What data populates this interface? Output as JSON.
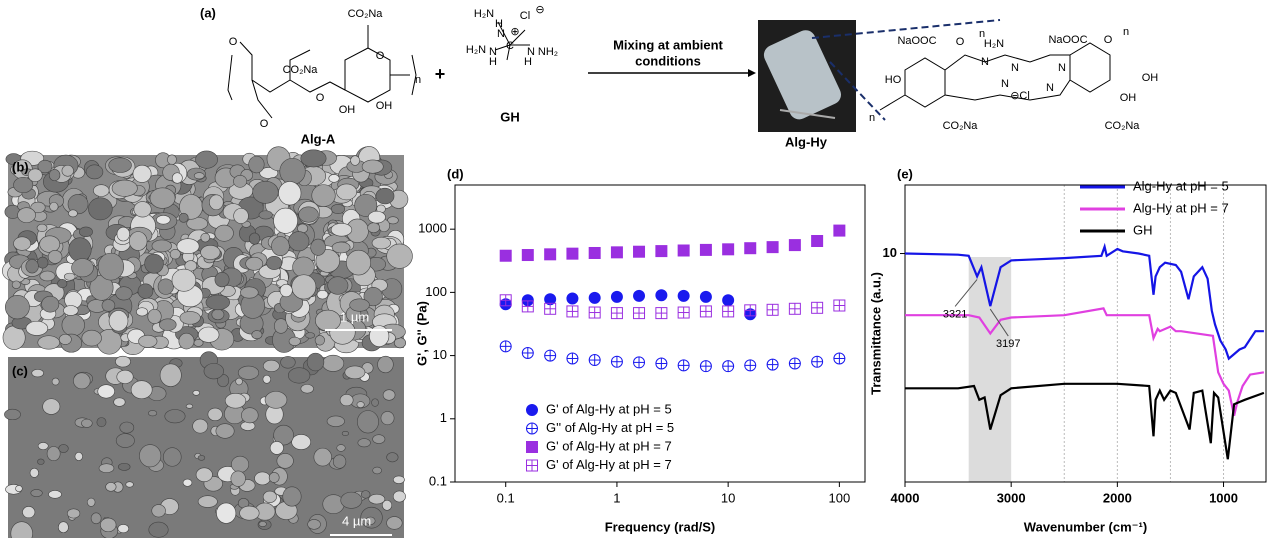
{
  "scheme": {
    "label": "(a)",
    "reactant_1": {
      "name": "Alg-A",
      "atoms": [
        "O",
        "CO₂Na",
        "CO₂Na",
        "O",
        "O",
        "O",
        "OH",
        "OH",
        "n"
      ]
    },
    "plus": "+",
    "reactant_2": {
      "name": "GH",
      "atoms": [
        "H₂N",
        "H",
        "N",
        "Cl",
        "⊖",
        "⊕",
        "H₂N",
        "N",
        "C",
        "N",
        "NH₂",
        "H",
        "H"
      ]
    },
    "arrow_text": [
      "Mixing at ambient",
      "conditions"
    ],
    "product": {
      "name": "Alg-Hy",
      "atoms": [
        "NaOOC",
        "O",
        "n",
        "H₂N",
        "NaOOC",
        "O",
        "n",
        "HO",
        "OH",
        "N",
        "N",
        "N",
        "N",
        "⊖Cl",
        "OH",
        "n",
        "CO₂Na",
        "CO₂Na",
        "N"
      ]
    }
  },
  "images": [
    {
      "label": "(b)",
      "scale_bar": "1 µm"
    },
    {
      "label": "(c)",
      "scale_bar": "4 µm"
    }
  ],
  "chart_data": [
    {
      "type": "scatter",
      "panel_label": "(d)",
      "xlabel": "Frequency (rad/S)",
      "ylabel": "G', G'' (Pa)",
      "xscale": "log",
      "yscale": "log",
      "xlim": [
        0.035,
        170
      ],
      "ylim": [
        0.1,
        5000
      ],
      "xticks": [
        0.1,
        1,
        10,
        100
      ],
      "yticks": [
        0.1,
        1,
        10,
        100,
        1000
      ],
      "x": [
        0.1,
        0.158,
        0.251,
        0.398,
        0.631,
        1,
        1.58,
        2.51,
        3.98,
        6.31,
        10,
        15.8,
        25.1,
        39.8,
        63.1,
        100
      ],
      "series": [
        {
          "name": "G' of Alg-Hy at pH = 5",
          "color": "#1a1aee",
          "marker": "circle",
          "filled": true,
          "values": [
            65,
            75,
            78,
            80,
            82,
            85,
            88,
            90,
            88,
            85,
            75,
            45,
            null,
            null,
            null,
            null
          ]
        },
        {
          "name": "G'' of Alg-Hy at pH = 5",
          "color": "#1a1aee",
          "marker": "circle",
          "filled": false,
          "values": [
            14,
            11,
            10,
            9,
            8.5,
            8,
            7.8,
            7.5,
            7,
            6.8,
            6.8,
            7,
            7.2,
            7.5,
            8,
            9
          ]
        },
        {
          "name": "G' of Alg-Hy at pH = 7",
          "color": "#9a2fe0",
          "marker": "square",
          "filled": true,
          "values": [
            380,
            390,
            400,
            410,
            420,
            430,
            440,
            450,
            460,
            470,
            480,
            500,
            520,
            560,
            650,
            950
          ]
        },
        {
          "name": "G' of Alg-Hy at pH = 7",
          "color": "#9a2fe0",
          "marker": "square",
          "filled": false,
          "values": [
            75,
            60,
            55,
            50,
            48,
            47,
            47,
            47,
            48,
            50,
            50,
            52,
            53,
            55,
            57,
            62
          ]
        }
      ],
      "legend": "lower-left"
    },
    {
      "type": "line",
      "panel_label": "(e)",
      "xlabel": "Wavenumber (cm⁻¹)",
      "ylabel": "Transmittance (a.u.)",
      "xlim": [
        4000,
        600
      ],
      "ylim": [
        0,
        13
      ],
      "xticks": [
        4000,
        3000,
        2000,
        1000
      ],
      "yticks": [
        10
      ],
      "vlines": [
        2500,
        2000,
        1500,
        1000
      ],
      "shade": [
        3400,
        3000
      ],
      "annotations": [
        {
          "text": "3321",
          "x": 3321,
          "y": 9.0
        },
        {
          "text": "3197",
          "x": 3197,
          "y": 7.7
        }
      ],
      "legend": "upper-right",
      "series": [
        {
          "name": "Alg-Hy at pH = 5",
          "color": "#1515e6",
          "x": [
            4000,
            3500,
            3400,
            3321,
            3280,
            3197,
            3100,
            3000,
            2500,
            2150,
            2120,
            2100,
            2000,
            1950,
            1800,
            1700,
            1660,
            1640,
            1600,
            1550,
            1450,
            1400,
            1330,
            1280,
            1200,
            1150,
            1110,
            1080,
            1030,
            980,
            950,
            900,
            850,
            800,
            700,
            620
          ],
          "values": [
            10,
            9.95,
            9.9,
            9.0,
            9.4,
            7.7,
            9.4,
            9.7,
            9.8,
            9.9,
            10.3,
            9.9,
            10.2,
            10.1,
            10,
            9.9,
            8.2,
            9.0,
            9.4,
            9.6,
            9.5,
            9.2,
            8.0,
            9.0,
            9.4,
            8.9,
            7.5,
            6.9,
            6.2,
            5.8,
            5.4,
            5.6,
            5.8,
            5.9,
            6.6,
            6.6
          ]
        },
        {
          "name": "Alg-Hy at pH = 7",
          "color": "#e040e0",
          "x": [
            4000,
            3400,
            3300,
            3197,
            3100,
            3000,
            2500,
            2130,
            2100,
            1700,
            1660,
            1620,
            1600,
            1500,
            1450,
            1400,
            1100,
            1050,
            1000,
            950,
            900,
            870,
            820,
            750,
            620
          ],
          "values": [
            7.3,
            7.3,
            7.2,
            6.5,
            7.1,
            7.2,
            7.3,
            7.6,
            7.3,
            7.3,
            6.3,
            6.7,
            6.6,
            6.8,
            6.6,
            6.6,
            6.4,
            4.8,
            4.3,
            4.0,
            2.9,
            3.5,
            4.2,
            4.7,
            4.8
          ]
        },
        {
          "name": "GH",
          "color": "#000000",
          "x": [
            4000,
            3500,
            3350,
            3300,
            3250,
            3197,
            3100,
            3000,
            2500,
            2000,
            1700,
            1660,
            1640,
            1600,
            1560,
            1500,
            1450,
            1320,
            1280,
            1200,
            1120,
            1090,
            1050,
            960,
            900,
            850,
            800,
            620
          ],
          "values": [
            4.1,
            4.1,
            4.2,
            3.6,
            3.7,
            2.3,
            3.8,
            4.1,
            4.3,
            4.3,
            4.2,
            2.0,
            3.6,
            4.0,
            3.6,
            4.0,
            3.9,
            2.3,
            3.9,
            4.0,
            1.7,
            3.9,
            3.7,
            1.0,
            3.4,
            3.5,
            3.6,
            3.9
          ]
        }
      ]
    }
  ]
}
